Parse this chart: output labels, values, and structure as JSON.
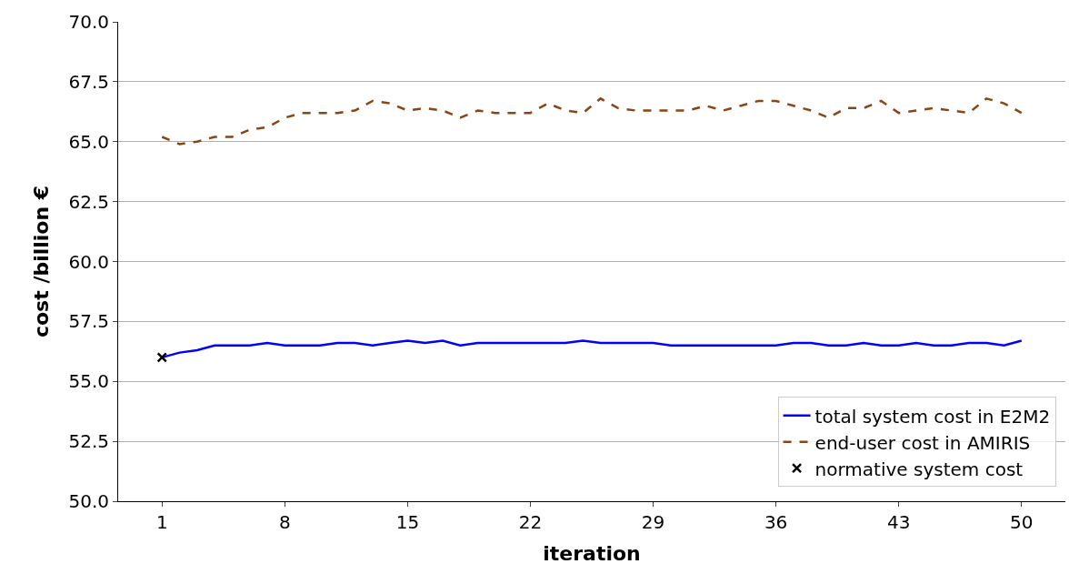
{
  "chart_data": {
    "type": "line",
    "xlabel": "iteration",
    "ylabel": "cost /billion €",
    "x": [
      1,
      2,
      3,
      4,
      5,
      6,
      7,
      8,
      9,
      10,
      11,
      12,
      13,
      14,
      15,
      16,
      17,
      18,
      19,
      20,
      21,
      22,
      23,
      24,
      25,
      26,
      27,
      28,
      29,
      30,
      31,
      32,
      33,
      34,
      35,
      36,
      37,
      38,
      39,
      40,
      41,
      42,
      43,
      44,
      45,
      46,
      47,
      48,
      49,
      50
    ],
    "series": [
      {
        "name": "total system cost in E2M2",
        "color": "#0000ff",
        "line_style": "solid",
        "marker": "none",
        "values": [
          56.0,
          56.2,
          56.3,
          56.5,
          56.5,
          56.5,
          56.6,
          56.5,
          56.5,
          56.5,
          56.6,
          56.6,
          56.5,
          56.6,
          56.7,
          56.6,
          56.7,
          56.5,
          56.6,
          56.6,
          56.6,
          56.6,
          56.6,
          56.6,
          56.7,
          56.6,
          56.6,
          56.6,
          56.6,
          56.5,
          56.5,
          56.5,
          56.5,
          56.5,
          56.5,
          56.5,
          56.6,
          56.6,
          56.5,
          56.5,
          56.6,
          56.5,
          56.5,
          56.6,
          56.5,
          56.5,
          56.6,
          56.6,
          56.5,
          56.7
        ]
      },
      {
        "name": "end-user cost in AMIRIS",
        "color": "#8b4513",
        "line_style": "dashed",
        "marker": "none",
        "values": [
          65.2,
          64.9,
          65.0,
          65.2,
          65.2,
          65.5,
          65.6,
          66.0,
          66.2,
          66.2,
          66.2,
          66.3,
          66.7,
          66.6,
          66.3,
          66.4,
          66.3,
          66.0,
          66.3,
          66.2,
          66.2,
          66.2,
          66.6,
          66.3,
          66.2,
          66.8,
          66.4,
          66.3,
          66.3,
          66.3,
          66.3,
          66.5,
          66.3,
          66.5,
          66.7,
          66.7,
          66.5,
          66.3,
          66.0,
          66.4,
          66.4,
          66.7,
          66.2,
          66.3,
          66.4,
          66.3,
          66.2,
          66.8,
          66.6,
          66.2
        ]
      },
      {
        "name": "normative system cost",
        "type": "scatter",
        "color": "#000000",
        "marker": "cross",
        "x": [
          1
        ],
        "values": [
          56.0
        ]
      }
    ],
    "xlim": [
      -1.5,
      52.5
    ],
    "xticks": [
      1,
      8,
      15,
      22,
      29,
      36,
      43,
      50
    ],
    "ylim": [
      50.0,
      70.0
    ],
    "yticks": [
      {
        "value": 50,
        "label": "50.0"
      },
      {
        "value": 52.5,
        "label": "52.5"
      },
      {
        "value": 55,
        "label": "55.0"
      },
      {
        "value": 57.5,
        "label": "57.5"
      },
      {
        "value": 60,
        "label": "60.0"
      },
      {
        "value": 62.5,
        "label": "62.5"
      },
      {
        "value": 65,
        "label": "65.0"
      },
      {
        "value": 67.5,
        "label": "67.5"
      },
      {
        "value": 70,
        "label": "70.0"
      }
    ],
    "grid": "y",
    "legend": "bottom right"
  }
}
